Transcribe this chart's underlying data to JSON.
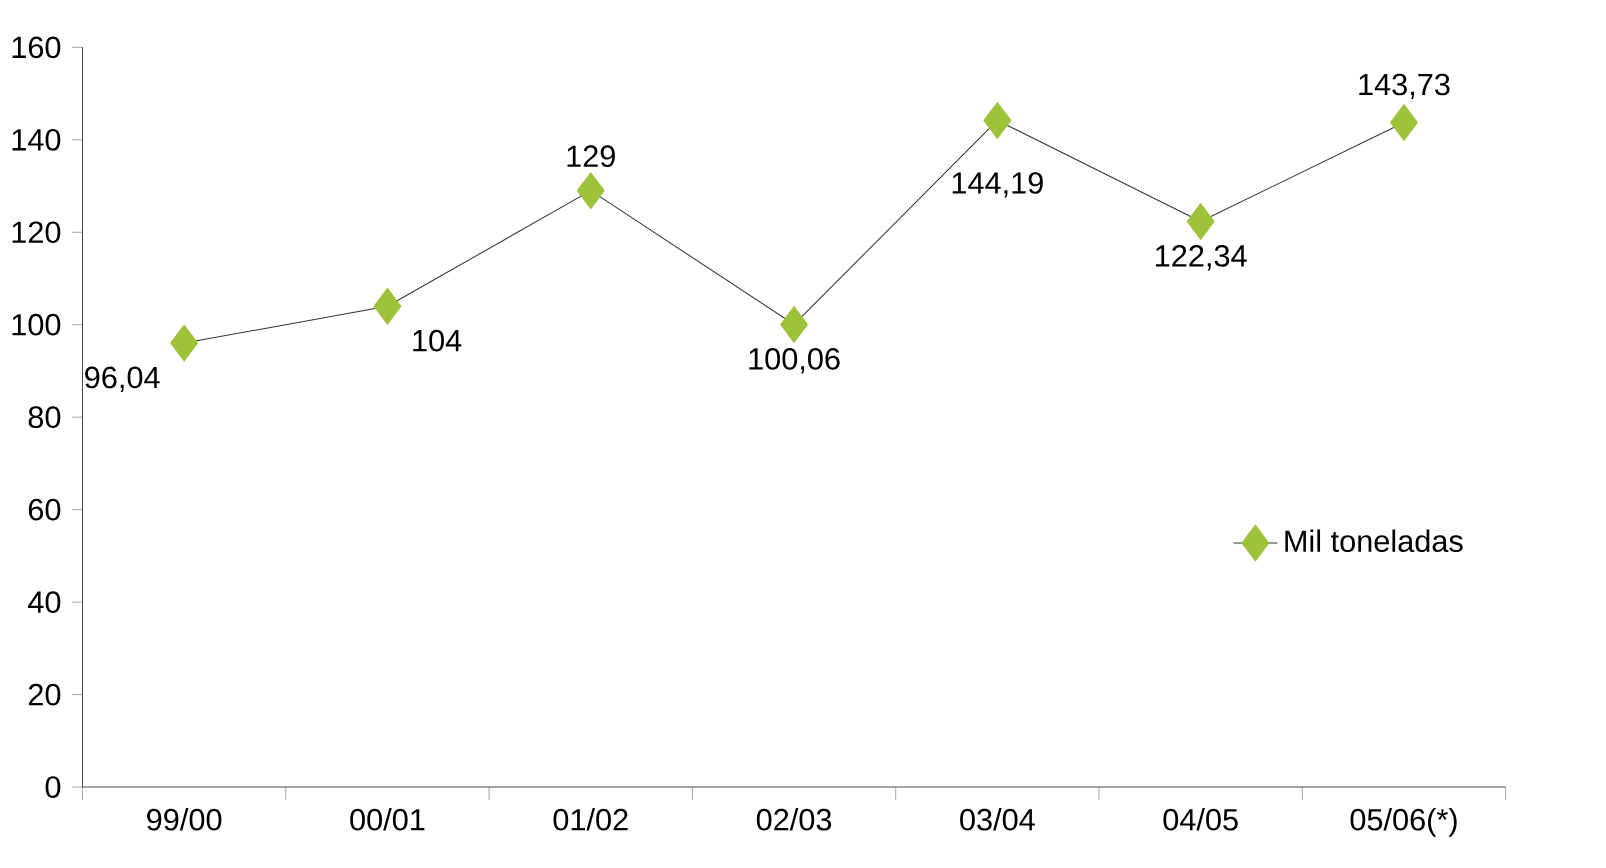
{
  "chart_data": {
    "type": "line",
    "categories": [
      "99/00",
      "00/01",
      "01/02",
      "02/03",
      "03/04",
      "04/05",
      "05/06(*)"
    ],
    "series": [
      {
        "name": "Mil toneladas",
        "color": "#9dc33b",
        "values": [
          96.04,
          104,
          129,
          100.06,
          144.19,
          122.34,
          143.73
        ],
        "value_labels": [
          "96,04",
          "104",
          "129",
          "100,06",
          "144,19",
          "122,34",
          "143,73"
        ]
      }
    ],
    "ylim": [
      0,
      160
    ],
    "yticks": [
      0,
      20,
      40,
      60,
      80,
      100,
      120,
      140,
      160
    ],
    "marker": "diamond",
    "line_style": "solid",
    "legend": "right",
    "grid": false
  }
}
